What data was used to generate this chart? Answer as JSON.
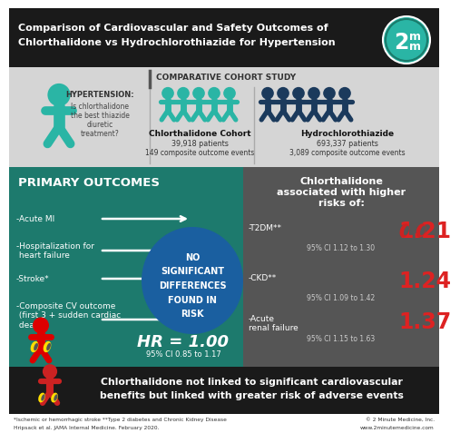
{
  "title_line1": "Comparison of Cardiovascular and Safety Outcomes of",
  "title_line2": "Chlorthalidone vs Hydrochlorothiazide for Hypertension",
  "title_bg": "#1a1a1a",
  "title_color": "#ffffff",
  "logo_bg": "#2ab5a5",
  "study_label": "COMPARATIVE COHORT STUDY",
  "hypertension_bold": "HYPERTENSION:",
  "hypertension_rest": "Is chlorthalidone\nthe best thiazide\ndiuretic\ntreatment?",
  "cohort1_name": "Chlorthalidone Cohort",
  "cohort1_patients": "39,918 patients",
  "cohort1_events": "149 composite outcome events",
  "cohort2_name": "Hydrochlorothiazide",
  "cohort2_patients": "693,337 patients",
  "cohort2_events": "3,089 composite outcome events",
  "cohort_bg": "#d5d5d5",
  "cohort1_icon_color": "#2ab5a5",
  "cohort2_icon_color": "#1b3a5c",
  "primary_bg": "#1d7a6d",
  "primary_title": "PRIMARY OUTCOMES",
  "no_diff_bg": "#1a5fa0",
  "no_diff_text": "NO\nSIGNIFICANT\nDIFFERENCES\nFOUND IN\nRISK",
  "hr_text": "HR = 1.00",
  "hr_ci": "95% CI 0.85 to 1.17",
  "right_bg": "#555555",
  "right_title1": "Chlorthalidone",
  "right_title2": "associated with higher",
  "right_title3": "risks of:",
  "risk1_label": "-T2DM**",
  "risk1_value": "1.21",
  "risk1_ci": "95% CI 1.12 to 1.30",
  "risk2_label": "-CKD**",
  "risk2_value": "1.24",
  "risk2_ci": "95% CI 1.09 to 1.42",
  "risk3_label": "-Acute\nrenal failure",
  "risk3_value": "1.37",
  "risk3_ci": "95% CI 1.15 to 1.63",
  "risk_value_color": "#dd2222",
  "bottom_bg": "#1a1a1a",
  "bottom_text1": "Chlorthalidone not linked to significant cardiovascular",
  "bottom_text2": "benefits but linked with greater risk of adverse events",
  "footnote1": "*Ischemic or hemorrhagic stroke **Type 2 diabetes and Chronic Kidney Disease",
  "footnote2": "Hripsack et al. JAMA Internal Medicine. February 2020.",
  "footnote3": "© 2 Minute Medicine, Inc.",
  "footnote4": "www.2minutemedicine.com",
  "heart_color": "#2ab5a5",
  "person_teal_color": "#2ab5a5",
  "person_dark_color": "#1b3a5c"
}
